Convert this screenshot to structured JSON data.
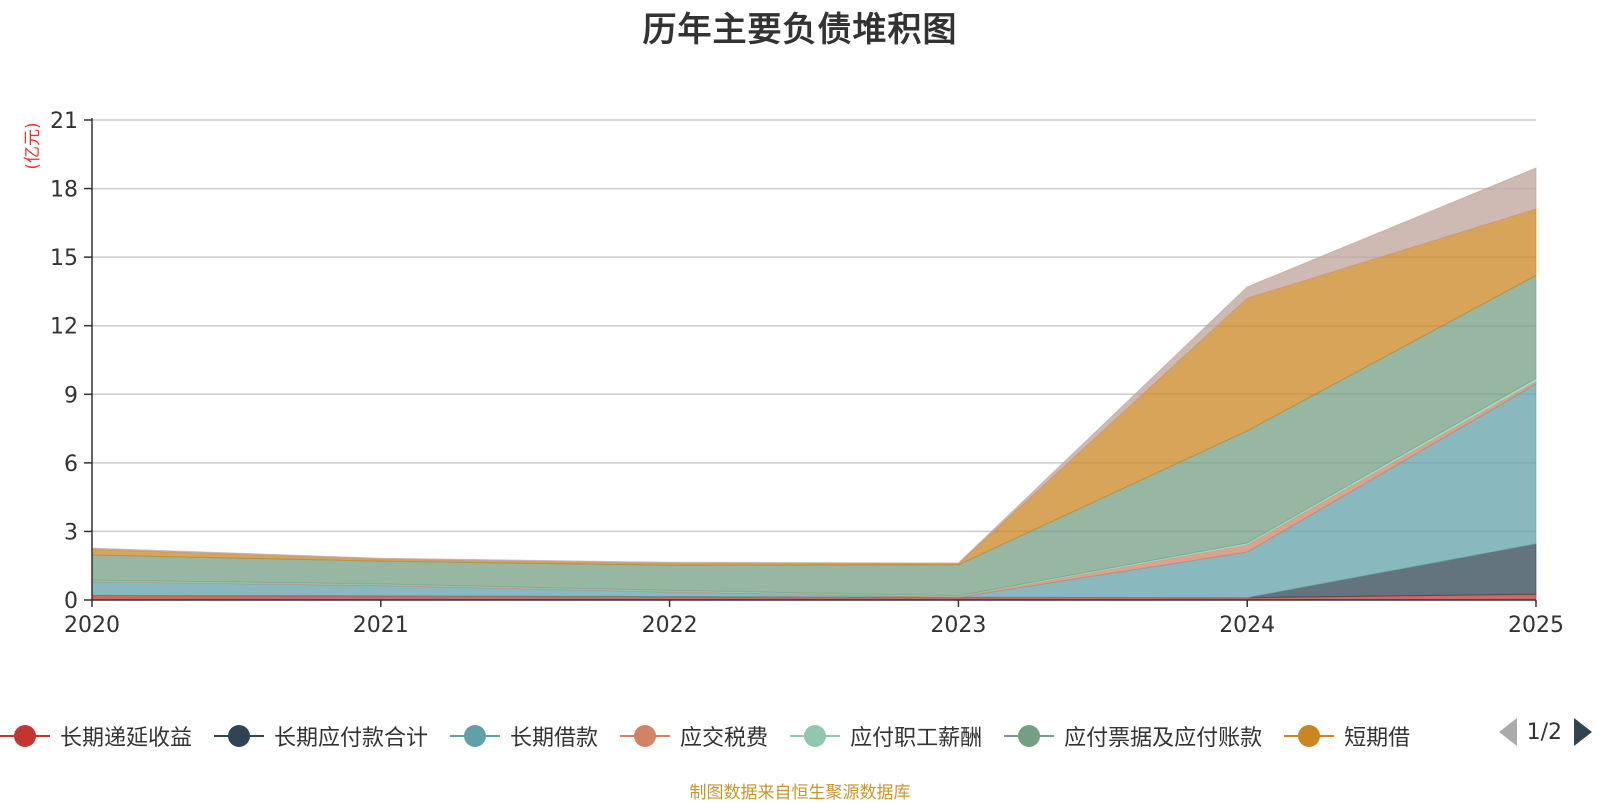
{
  "chart_data": {
    "type": "area",
    "stacked": true,
    "title": "历年主要负债堆积图",
    "ylabel": "(亿元)",
    "xlabel": "",
    "categories": [
      "2020",
      "2021",
      "2022",
      "2023",
      "2024",
      "2025"
    ],
    "ylim": [
      0,
      21
    ],
    "yticks": [
      "0",
      "3",
      "6",
      "9",
      "12",
      "15",
      "18",
      "21"
    ],
    "grid": true,
    "series": [
      {
        "name": "长期递延收益",
        "color": "#c23531",
        "values": [
          0.2,
          0.18,
          0.15,
          0.12,
          0.1,
          0.25
        ]
      },
      {
        "name": "长期应付款合计",
        "color": "#2f4554",
        "values": [
          0,
          0,
          0,
          0,
          0,
          2.2
        ]
      },
      {
        "name": "长期借款",
        "color": "#61a0a8",
        "values": [
          0.6,
          0.45,
          0.2,
          0,
          2.0,
          7.0
        ]
      },
      {
        "name": "应交税费",
        "color": "#d48265",
        "values": [
          0.02,
          0.02,
          0.02,
          0.02,
          0.3,
          0.1
        ]
      },
      {
        "name": "应付职工薪酬",
        "color": "#91c7ae",
        "values": [
          0.05,
          0.05,
          0.05,
          0.05,
          0.1,
          0.15
        ]
      },
      {
        "name": "应付票据及应付账款",
        "color": "#749f83",
        "values": [
          1.1,
          1.0,
          1.1,
          1.35,
          4.9,
          4.5
        ]
      },
      {
        "name": "短期借",
        "color": "#ca8622",
        "values": [
          0.25,
          0.08,
          0.08,
          0.05,
          5.8,
          2.9
        ]
      },
      {
        "name": "",
        "color": "#bda29a",
        "values": [
          0.05,
          0.05,
          0.05,
          0.03,
          0.5,
          1.8
        ]
      }
    ]
  },
  "legend": {
    "items": [
      {
        "label": "长期递延收益",
        "color": "#c23531"
      },
      {
        "label": "长期应付款合计",
        "color": "#2f4554"
      },
      {
        "label": "长期借款",
        "color": "#61a0a8"
      },
      {
        "label": "应交税费",
        "color": "#d48265"
      },
      {
        "label": "应付职工薪酬",
        "color": "#91c7ae"
      },
      {
        "label": "应付票据及应付账款",
        "color": "#749f83"
      },
      {
        "label": "短期借",
        "color": "#ca8622"
      }
    ],
    "page_indicator": "1/2"
  },
  "source_note": "制图数据来自恒生聚源数据库"
}
